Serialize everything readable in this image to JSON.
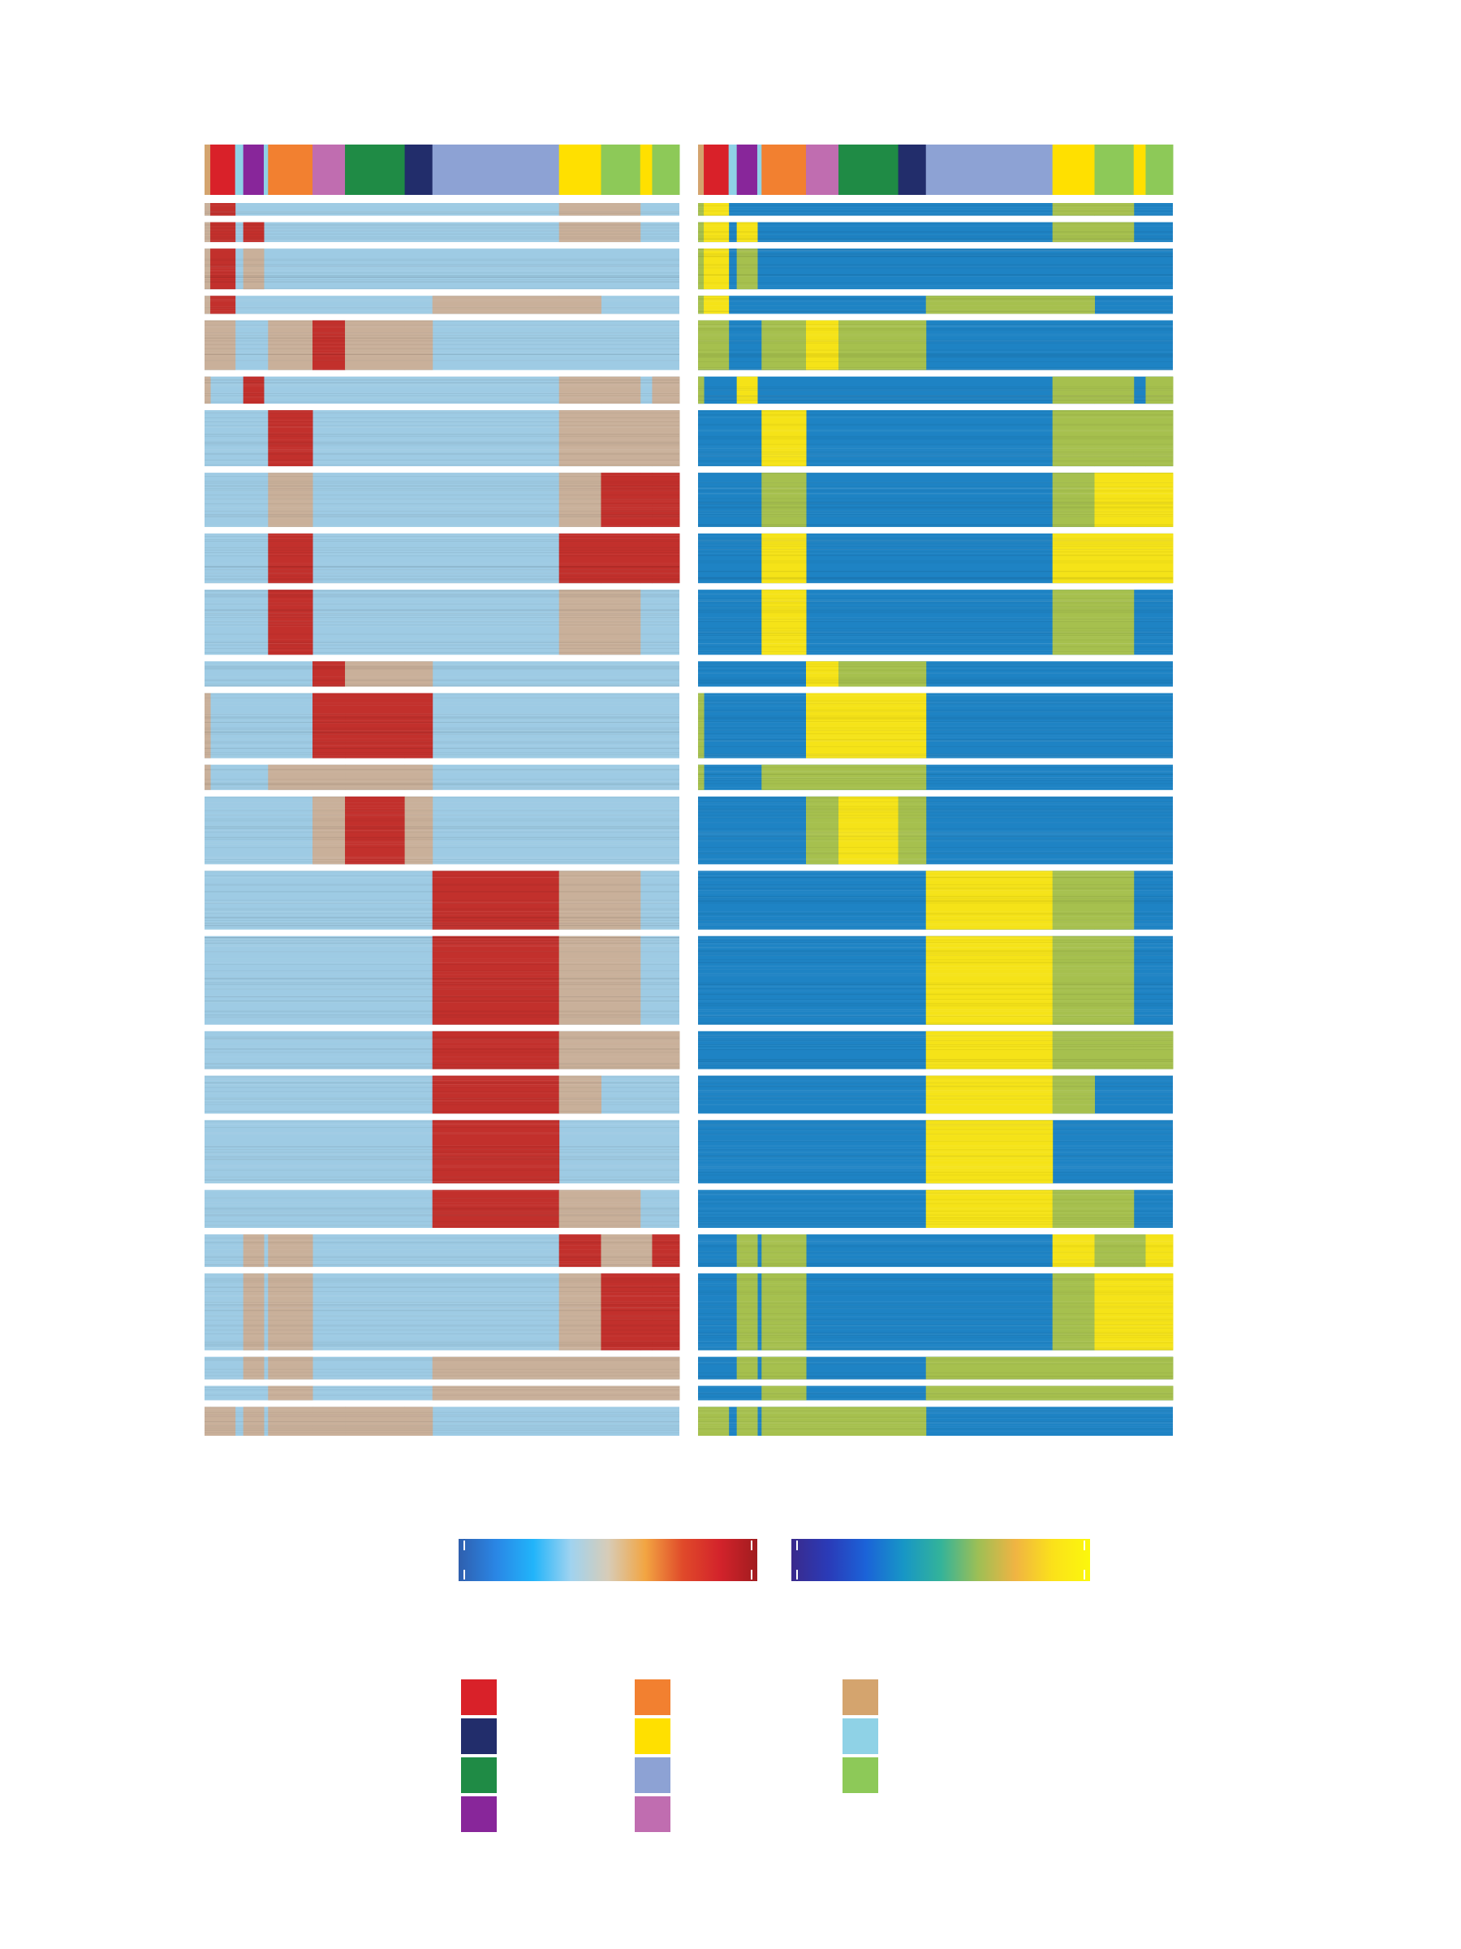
{
  "chart_data": {
    "type": "heatmap",
    "title": "",
    "xlabel": "",
    "ylabel": "",
    "grid": false,
    "legend": "bottom-center",
    "column_groups": [
      {
        "color": "#d4a46e",
        "width": 0.012
      },
      {
        "color": "#d92129",
        "width": 0.052
      },
      {
        "color": "#8fd2e6",
        "width": 0.017
      },
      {
        "color": "#88269a",
        "width": 0.043
      },
      {
        "color": "#8fd2e6",
        "width": 0.009
      },
      {
        "color": "#f28030",
        "width": 0.093
      },
      {
        "color": "#c06db0",
        "width": 0.068
      },
      {
        "color": "#1f8b45",
        "width": 0.125
      },
      {
        "color": "#222d6b",
        "width": 0.058
      },
      {
        "color": "#8da2d4",
        "width": 0.265
      },
      {
        "color": "#ffe000",
        "width": 0.088
      },
      {
        "color": "#8dc958",
        "width": 0.082
      },
      {
        "color": "#ffe000",
        "width": 0.025
      },
      {
        "color": "#8dc958",
        "width": 0.057
      }
    ],
    "row_blocks": [
      {
        "rows": 14,
        "high": [
          1
        ],
        "mid": [
          0,
          10,
          11
        ]
      },
      {
        "rows": 22,
        "high": [
          1,
          3
        ],
        "mid": [
          0,
          10,
          11
        ]
      },
      {
        "rows": 45,
        "high": [
          1
        ],
        "mid": [
          0,
          3
        ]
      },
      {
        "rows": 20,
        "high": [
          1
        ],
        "mid": [
          0,
          9,
          10
        ]
      },
      {
        "rows": 55,
        "high": [
          6
        ],
        "mid": [
          0,
          1,
          5,
          7,
          8
        ]
      },
      {
        "rows": 30,
        "high": [
          3
        ],
        "mid": [
          0,
          10,
          11,
          13
        ]
      },
      {
        "rows": 62,
        "high": [
          5
        ],
        "mid": [
          10,
          11,
          12,
          13
        ]
      },
      {
        "rows": 60,
        "high": [
          11,
          12,
          13
        ],
        "mid": [
          5,
          10
        ]
      },
      {
        "rows": 55,
        "high": [
          5,
          10,
          11,
          12,
          13
        ],
        "mid": []
      },
      {
        "rows": 72,
        "high": [
          5
        ],
        "mid": [
          10,
          11
        ]
      },
      {
        "rows": 28,
        "high": [
          6
        ],
        "mid": [
          7,
          8
        ]
      },
      {
        "rows": 72,
        "high": [
          6,
          7,
          8
        ],
        "mid": [
          0
        ]
      },
      {
        "rows": 28,
        "high": [],
        "mid": [
          0,
          5,
          6,
          7,
          8
        ]
      },
      {
        "rows": 75,
        "high": [
          7
        ],
        "mid": [
          6,
          8
        ]
      },
      {
        "rows": 65,
        "high": [
          9
        ],
        "mid": [
          10,
          11
        ]
      },
      {
        "rows": 98,
        "high": [
          9
        ],
        "mid": [
          10,
          11
        ]
      },
      {
        "rows": 42,
        "high": [
          9
        ],
        "mid": [
          10,
          11,
          12,
          13
        ]
      },
      {
        "rows": 42,
        "high": [
          9
        ],
        "mid": [
          10
        ]
      },
      {
        "rows": 70,
        "high": [
          9
        ],
        "mid": []
      },
      {
        "rows": 42,
        "high": [
          9
        ],
        "mid": [
          10,
          11
        ]
      },
      {
        "rows": 36,
        "high": [
          10,
          13
        ],
        "mid": [
          3,
          5,
          11,
          12
        ]
      },
      {
        "rows": 85,
        "high": [
          11,
          12,
          13
        ],
        "mid": [
          3,
          5,
          10
        ]
      },
      {
        "rows": 25,
        "high": [],
        "mid": [
          3,
          5,
          9,
          10,
          11,
          12,
          13
        ]
      },
      {
        "rows": 16,
        "high": [],
        "mid": [
          5,
          9,
          10,
          11,
          12,
          13
        ]
      },
      {
        "rows": 32,
        "high": [],
        "mid": [
          0,
          1,
          3,
          5,
          6,
          7,
          8
        ]
      }
    ],
    "colorbars": [
      {
        "stops": [
          "#2f5fae",
          "#2a86e5",
          "#21b4fa",
          "#9fd3f0",
          "#d7ccb8",
          "#f2a542",
          "#e04a2a",
          "#d3232b",
          "#a11c1f"
        ]
      },
      {
        "stops": [
          "#3a2a8c",
          "#2a3bb8",
          "#1b63d8",
          "#1796c6",
          "#33b39a",
          "#9dbf55",
          "#f0b443",
          "#fbe11a",
          "#fbf80c"
        ]
      }
    ],
    "legend_items": [
      {
        "color": "#d92129"
      },
      {
        "color": "#222d6b"
      },
      {
        "color": "#1f8b45"
      },
      {
        "color": "#88269a"
      },
      {
        "color": "#f28030"
      },
      {
        "color": "#ffe000"
      },
      {
        "color": "#8da2d4"
      },
      {
        "color": "#c06db0"
      },
      {
        "color": "#d4a46e"
      },
      {
        "color": "#8fd2e6"
      },
      {
        "color": "#8dc958"
      }
    ]
  }
}
